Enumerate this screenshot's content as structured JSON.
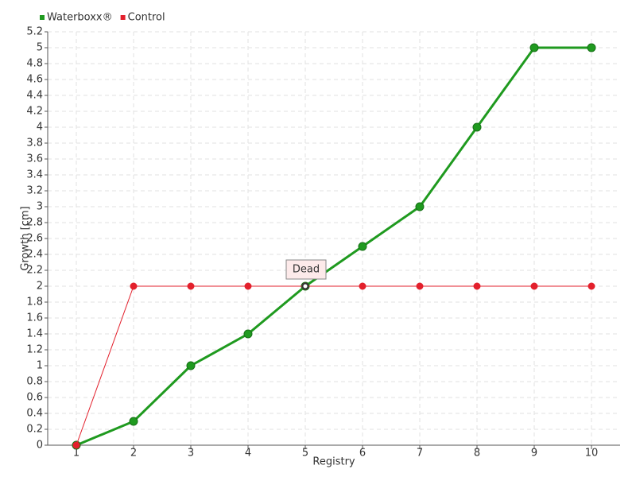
{
  "chart_data": {
    "type": "line",
    "x_label": "Registry",
    "y_label": "Growth [cm]",
    "x": [
      1,
      2,
      3,
      4,
      5,
      6,
      7,
      8,
      9,
      10
    ],
    "xlim": [
      0.5,
      10.5
    ],
    "xticks": [
      1,
      2,
      3,
      4,
      5,
      6,
      7,
      8,
      9,
      10
    ],
    "ylim": [
      0,
      5.2
    ],
    "yticks": [
      0,
      0.2,
      0.4,
      0.6,
      0.8,
      1,
      1.2,
      1.4,
      1.6,
      1.8,
      2,
      2.2,
      2.4,
      2.6,
      2.8,
      3,
      3.2,
      3.4,
      3.6,
      3.8,
      4,
      4.2,
      4.4,
      4.6,
      4.8,
      5,
      5.2
    ],
    "grid": true,
    "legend": "top-left",
    "series": [
      {
        "name": "Waterboxx®",
        "color": "#1f9a1f",
        "values": [
          0,
          0.3,
          1,
          1.4,
          2,
          2.5,
          3,
          4,
          5,
          5
        ]
      },
      {
        "name": "Control",
        "color": "#e3202c",
        "values": [
          0,
          2,
          2,
          2,
          2,
          2,
          2,
          2,
          2,
          2
        ]
      }
    ],
    "annotations": [
      {
        "text": "Dead",
        "x": 5,
        "y": 2
      }
    ]
  }
}
